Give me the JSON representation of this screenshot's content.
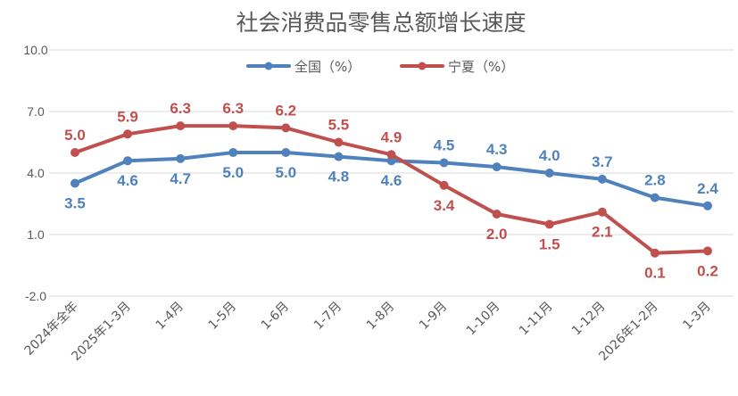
{
  "chart_data": {
    "type": "line",
    "title": "社会消费品零售总额增长速度",
    "categories": [
      "2024年全年",
      "2025年1-3月",
      "1-4月",
      "1-5月",
      "1-6月",
      "1-7月",
      "1-8月",
      "1-9月",
      "1-10月",
      "1-11月",
      "1-12月",
      "2026年1-2月",
      "1-3月"
    ],
    "series": [
      {
        "name": "全国（%）",
        "color": "#4f81bd",
        "values": [
          3.5,
          4.6,
          4.7,
          5.0,
          5.0,
          4.8,
          4.6,
          4.5,
          4.3,
          4.0,
          3.7,
          2.8,
          2.4
        ],
        "labels": [
          "3.5",
          "4.6",
          "4.7",
          "5.0",
          "5.0",
          "4.8",
          "4.6",
          "4.5",
          "4.3",
          "4.0",
          "3.7",
          "2.8",
          "2.4"
        ]
      },
      {
        "name": "宁夏（%）",
        "color": "#c0504d",
        "values": [
          5.0,
          5.9,
          6.3,
          6.3,
          6.2,
          5.5,
          4.9,
          3.4,
          2.0,
          1.5,
          2.1,
          0.1,
          0.2
        ],
        "labels": [
          "5.0",
          "5.9",
          "6.3",
          "6.3",
          "6.2",
          "5.5",
          "4.9",
          "3.4",
          "2.0",
          "1.5",
          "2.1",
          "0.1",
          "0.2"
        ]
      }
    ],
    "yticks": [
      "-2.0",
      "1.0",
      "4.0",
      "7.0",
      "10.0"
    ],
    "ylim": [
      -2,
      10
    ],
    "grid": true,
    "legend": "top-center"
  }
}
